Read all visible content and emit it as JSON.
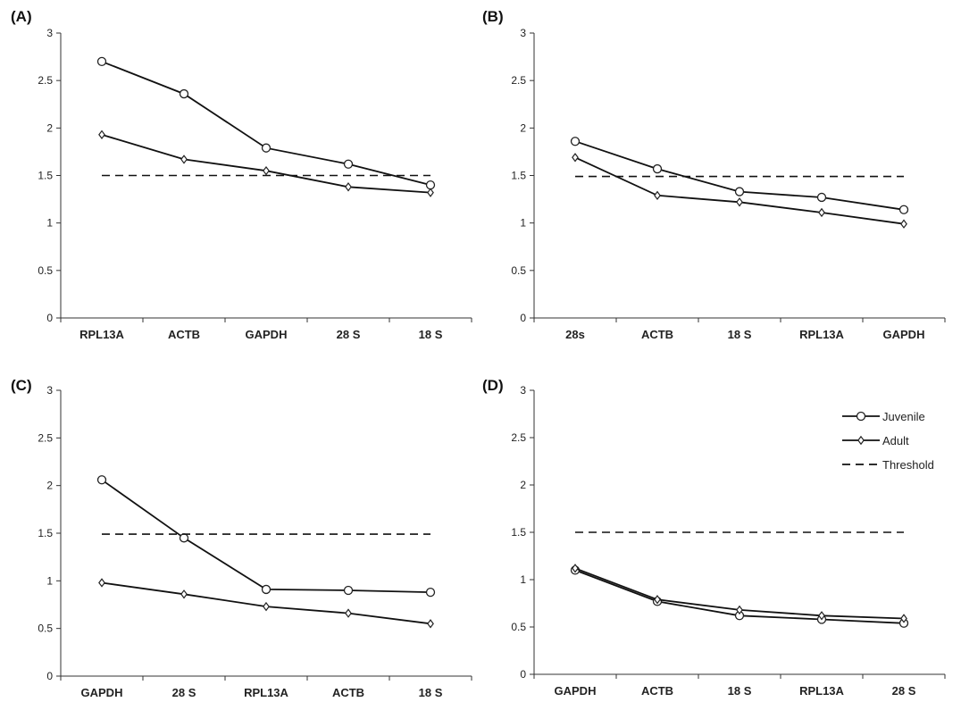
{
  "chart_data": [
    {
      "type": "line",
      "panel_label": "(A)",
      "categories": [
        "RPL13A",
        "ACTB",
        "GAPDH",
        "28 S",
        "18 S"
      ],
      "ylim": [
        0,
        3
      ],
      "yticks": [
        "0",
        "0.5",
        "1",
        "1.5",
        "2",
        "2.5",
        "3"
      ],
      "series": [
        {
          "values": [
            2.7,
            2.36,
            1.79,
            1.62,
            1.4
          ],
          "marker": "circle"
        },
        {
          "values": [
            1.93,
            1.67,
            1.55,
            1.38,
            1.32
          ],
          "marker": "diamond"
        },
        {
          "values": [
            1.5,
            1.5,
            1.5,
            1.5,
            1.5
          ],
          "marker": "none",
          "dashed": true
        }
      ]
    },
    {
      "type": "line",
      "panel_label": "(B)",
      "categories": [
        "28s",
        "ACTB",
        "18 S",
        "RPL13A",
        "GAPDH"
      ],
      "ylim": [
        0,
        3
      ],
      "yticks": [
        "0",
        "0.5",
        "1",
        "1.5",
        "2",
        "2.5",
        "3"
      ],
      "series": [
        {
          "values": [
            1.86,
            1.57,
            1.33,
            1.27,
            1.14
          ],
          "marker": "circle"
        },
        {
          "values": [
            1.69,
            1.29,
            1.22,
            1.11,
            0.99
          ],
          "marker": "diamond"
        },
        {
          "values": [
            1.49,
            1.49,
            1.49,
            1.49,
            1.49
          ],
          "marker": "none",
          "dashed": true
        }
      ]
    },
    {
      "type": "line",
      "panel_label": "(C)",
      "categories": [
        "GAPDH",
        "28 S",
        "RPL13A",
        "ACTB",
        "18 S"
      ],
      "ylim": [
        0,
        3
      ],
      "yticks": [
        "0",
        "0.5",
        "1",
        "1.5",
        "2",
        "2.5",
        "3"
      ],
      "series": [
        {
          "values": [
            2.06,
            1.45,
            0.91,
            0.9,
            0.88
          ],
          "marker": "circle"
        },
        {
          "values": [
            0.98,
            0.86,
            0.73,
            0.66,
            0.55
          ],
          "marker": "diamond"
        },
        {
          "values": [
            1.49,
            1.49,
            1.49,
            1.49,
            1.49
          ],
          "marker": "none",
          "dashed": true
        }
      ]
    },
    {
      "type": "line",
      "panel_label": "(D)",
      "categories": [
        "GAPDH",
        "ACTB",
        "18 S",
        "RPL13A",
        "28 S"
      ],
      "ylim": [
        0,
        3
      ],
      "yticks": [
        "0",
        "0.5",
        "1",
        "1.5",
        "2",
        "2.5",
        "3"
      ],
      "legend": {
        "placement": "top-right",
        "entries": [
          {
            "name": "Juvenile",
            "marker": "circle",
            "dashed": false
          },
          {
            "name": "Adult",
            "marker": "diamond",
            "dashed": false
          },
          {
            "name": "Threshold",
            "marker": "none",
            "dashed": true
          }
        ]
      },
      "series": [
        {
          "name": "Juvenile",
          "values": [
            1.1,
            0.77,
            0.62,
            0.58,
            0.54
          ],
          "marker": "circle"
        },
        {
          "name": "Adult",
          "values": [
            1.12,
            0.79,
            0.68,
            0.62,
            0.59
          ],
          "marker": "diamond"
        },
        {
          "name": "Threshold",
          "values": [
            1.5,
            1.5,
            1.5,
            1.5,
            1.5
          ],
          "marker": "none",
          "dashed": true
        }
      ]
    }
  ]
}
